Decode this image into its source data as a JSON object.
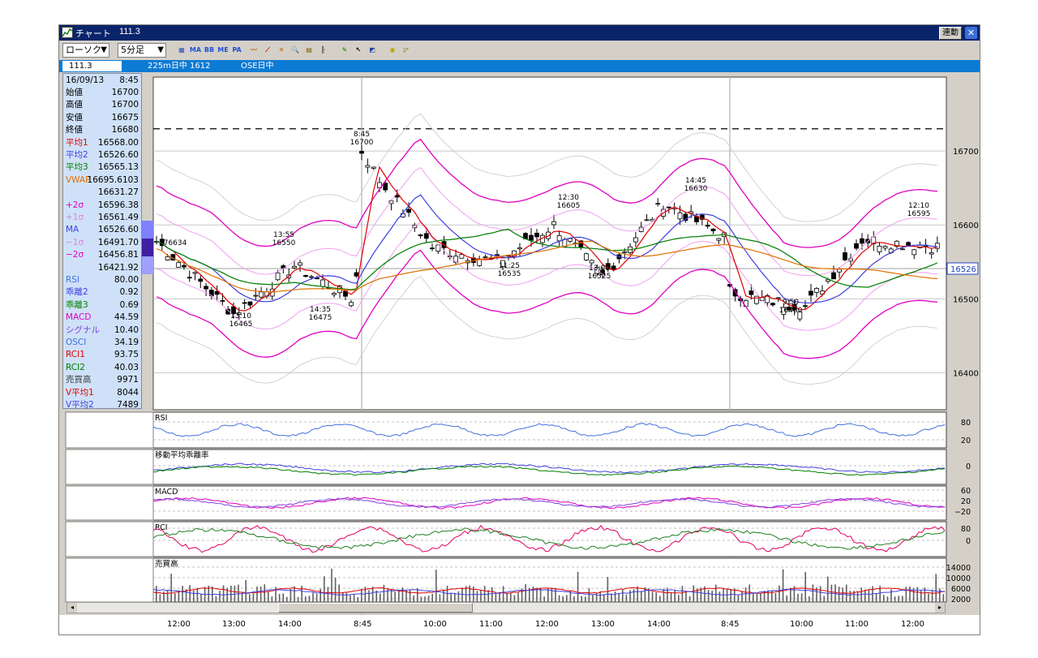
{
  "window": {
    "title": "チャート",
    "title_symbol": "111.3",
    "link_button": "連動",
    "close_glyph": "✕"
  },
  "toolbar": {
    "chart_type": "ローソク",
    "interval": "5分足",
    "dropdown_arrow": "▼",
    "buttons": [
      {
        "name": "indicator-settings-icon",
        "glyph": "▦",
        "color": "#3050c0"
      },
      {
        "name": "ma-button",
        "glyph": "MA",
        "color": "#2050d0"
      },
      {
        "name": "bb-button",
        "glyph": "BB",
        "color": "#2050d0"
      },
      {
        "name": "mb-button",
        "glyph": "ME",
        "color": "#2050d0"
      },
      {
        "name": "pa-button",
        "glyph": "PA",
        "color": "#2050d0"
      },
      {
        "name": "line-chart-icon",
        "glyph": "〰",
        "color": "#c06000"
      },
      {
        "name": "trend-icon",
        "glyph": "⟋",
        "color": "#c00000"
      },
      {
        "name": "compare-icon",
        "glyph": "✕",
        "color": "#c06000"
      },
      {
        "name": "zoom-icon",
        "glyph": "🔍",
        "color": "#2040a0"
      },
      {
        "name": "grid-icon",
        "glyph": "▤",
        "color": "#806000"
      },
      {
        "name": "bars-icon",
        "glyph": "╟",
        "color": "#404040"
      },
      {
        "name": "pen-icon",
        "glyph": "✎",
        "color": "#008000"
      },
      {
        "name": "pointer-icon",
        "glyph": "↖",
        "color": "#000000"
      },
      {
        "name": "eraser-icon",
        "glyph": "◩",
        "color": "#2040a0"
      },
      {
        "name": "palette-icon",
        "glyph": "◉",
        "color": "#c0a000"
      },
      {
        "name": "ruler-icon",
        "glyph": "◸",
        "color": "#806000"
      }
    ]
  },
  "infobar": {
    "symbol": "111.3",
    "contract": "225m日中 1612",
    "market": "OSE日中"
  },
  "panel": {
    "date": "16/09/13",
    "time": "8:45",
    "rows": [
      {
        "label": "始値",
        "value": "16700",
        "color": "#000000"
      },
      {
        "label": "高値",
        "value": "16700",
        "color": "#000000"
      },
      {
        "label": "安値",
        "value": "16675",
        "color": "#000000"
      },
      {
        "label": "終値",
        "value": "16680",
        "color": "#000000"
      },
      {
        "label": "平均1",
        "value": "16568.00",
        "color": "#e00000"
      },
      {
        "label": "平均2",
        "value": "16526.60",
        "color": "#4040e0"
      },
      {
        "label": "平均3",
        "value": "16565.13",
        "color": "#008000"
      },
      {
        "label": "VWAP",
        "value": "16695.6103",
        "color": "#e07000"
      },
      {
        "label": "",
        "value": "16631.27",
        "color": "#000000"
      },
      {
        "label": "+2σ",
        "value": "16596.38",
        "color": "#e000c0"
      },
      {
        "label": "+1σ",
        "value": "16561.49",
        "color": "#e080e0"
      },
      {
        "label": "MA",
        "value": "16526.60",
        "color": "#4040e0"
      },
      {
        "label": "−1σ",
        "value": "16491.70",
        "color": "#e080e0"
      },
      {
        "label": "−2σ",
        "value": "16456.81",
        "color": "#e000c0"
      },
      {
        "label": "",
        "value": "16421.92",
        "color": "#000000"
      },
      {
        "label": "RSI",
        "value": "80.00",
        "color": "#4070e0"
      },
      {
        "label": "乖離2",
        "value": "0.92",
        "color": "#4040e0"
      },
      {
        "label": "乖離3",
        "value": "0.69",
        "color": "#008000"
      },
      {
        "label": "MACD",
        "value": "44.59",
        "color": "#e000c0"
      },
      {
        "label": "シグナル",
        "value": "10.40",
        "color": "#8040e0"
      },
      {
        "label": "OSCI",
        "value": "34.19",
        "color": "#4070e0"
      },
      {
        "label": "RCI1",
        "value": "93.75",
        "color": "#e00000"
      },
      {
        "label": "RCI2",
        "value": "40.03",
        "color": "#008000"
      },
      {
        "label": "売買高",
        "value": "9971",
        "color": "#404040"
      },
      {
        "label": "V平均1",
        "value": "8044",
        "color": "#e00000"
      },
      {
        "label": "V平均2",
        "value": "7489",
        "color": "#4040e0"
      }
    ]
  },
  "colors": {
    "ma1": "#e00000",
    "ma2": "#4040e0",
    "ma3": "#008000",
    "vwap": "#e07000",
    "bb2": "#e000c0",
    "bb3": "#c8c8c8",
    "rsi": "#4070e0",
    "macd": "#e000c0",
    "signal": "#8040e0",
    "rci1": "#e00060",
    "rci2": "#208020",
    "vol_ma1": "#e00000",
    "vol_ma2": "#4040e0"
  },
  "chart_data": {
    "type": "candlestick",
    "main": {
      "ylim": [
        16350,
        16800
      ],
      "yticks": [
        "16700",
        "16600",
        "16500",
        "16400"
      ],
      "last_price_label": "16526",
      "dashed_level": 16730,
      "annotations": [
        {
          "time": "8:45",
          "price": "16700"
        },
        {
          "time": "13:55",
          "price": "16550"
        },
        {
          "time": "13:10",
          "price": "16465"
        },
        {
          "time": "14:35",
          "price": "16475"
        },
        {
          "time": "11:25",
          "price": "16535"
        },
        {
          "time": "12:30",
          "price": "16605"
        },
        {
          "time": "13:00",
          "price": "16525"
        },
        {
          "time": "14:45",
          "price": "16630"
        },
        {
          "time": "9:50",
          "price": "16480"
        },
        {
          "time": "12:10",
          "price": "16595"
        }
      ],
      "left_marker": "176634"
    },
    "subpanels": [
      {
        "title": "RSI",
        "ticks": [
          "80",
          "20"
        ]
      },
      {
        "title": "移動平均乖離率",
        "ticks": [
          "0"
        ]
      },
      {
        "title": "MACD",
        "ticks": [
          "60",
          "20",
          "−20"
        ]
      },
      {
        "title": "RCI",
        "ticks": [
          "80",
          "0"
        ]
      },
      {
        "title": "売買高",
        "ticks": [
          "14000",
          "10000",
          "6000",
          "2000"
        ]
      }
    ],
    "x_ticks": [
      "12:00",
      "13:00",
      "14:00",
      "8:45",
      "10:00",
      "11:00",
      "12:00",
      "13:00",
      "14:00",
      "8:45",
      "10:00",
      "11:00",
      "12:00"
    ]
  },
  "scroll": {
    "left": "◂",
    "right": "▸"
  }
}
